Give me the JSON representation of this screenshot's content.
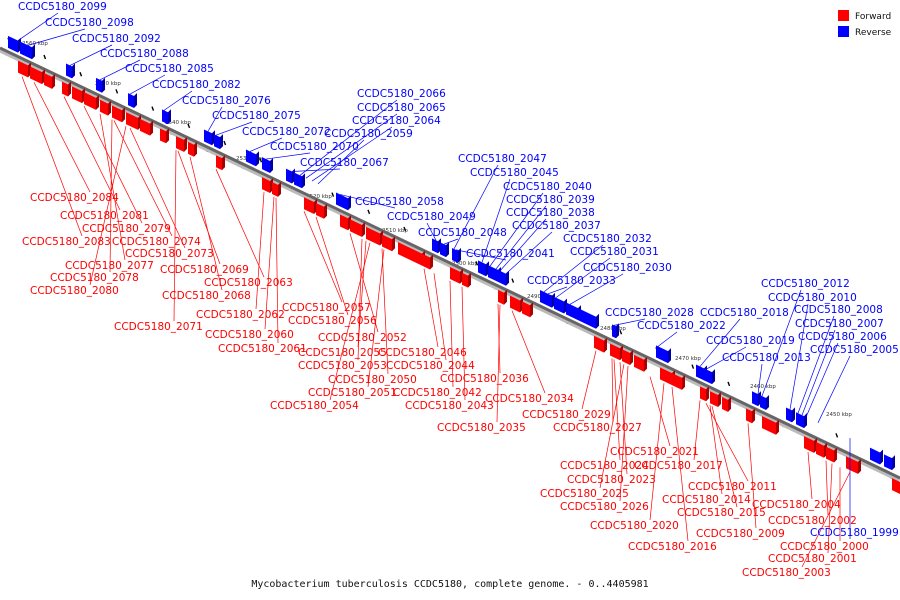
{
  "legend": [
    {
      "label": "Forward",
      "color": "#ff0000"
    },
    {
      "label": "Reverse",
      "color": "#0000ff"
    }
  ],
  "caption": "Mycobacterium tuberculosis CCDC5180, complete genome. - 0..4405981",
  "ticks": [
    "2560 kbp",
    "2550 kbp",
    "2540 kbp",
    "2530 kbp",
    "2520 kbp",
    "2510 kbp",
    "2500 kbp",
    "2490 kbp",
    "2480 kbp",
    "2470 kbp",
    "2460 kbp",
    "2450 kbp"
  ],
  "reverse_labels": [
    "CCDC5180_2099",
    "CCDC5180_2098",
    "CCDC5180_2092",
    "CCDC5180_2088",
    "CCDC5180_2085",
    "CCDC5180_2082",
    "CCDC5180_2076",
    "CCDC5180_2075",
    "CCDC5180_2072",
    "CCDC5180_2070",
    "CCDC5180_2067",
    "CCDC5180_2066",
    "CCDC5180_2065",
    "CCDC5180_2064",
    "CCDC5180_2059",
    "CCDC5180_2058",
    "CCDC5180_2049",
    "CCDC5180_2048",
    "CCDC5180_2047",
    "CCDC5180_2045",
    "CCDC5180_2040",
    "CCDC5180_2039",
    "CCDC5180_2038",
    "CCDC5180_2037",
    "CCDC5180_2041",
    "CCDC5180_2032",
    "CCDC5180_2031",
    "CCDC5180_2030",
    "CCDC5180_2033",
    "CCDC5180_2028",
    "CCDC5180_2022",
    "CCDC5180_2018",
    "CCDC5180_2019",
    "CCDC5180_2013",
    "CCDC5180_2012",
    "CCDC5180_2010",
    "CCDC5180_2008",
    "CCDC5180_2007",
    "CCDC5180_2006",
    "CCDC5180_2005",
    "CCDC5180_1999"
  ],
  "forward_labels": [
    "CCDC5180_2084",
    "CCDC5180_2081",
    "CCDC5180_2079",
    "CCDC5180_2083",
    "CCDC5180_2074",
    "CCDC5180_2073",
    "CCDC5180_2077",
    "CCDC5180_2078",
    "CCDC5180_2080",
    "CCDC5180_2069",
    "CCDC5180_2063",
    "CCDC5180_2068",
    "CCDC5180_2057",
    "CCDC5180_2062",
    "CCDC5180_2056",
    "CCDC5180_2071",
    "CCDC5180_2060",
    "CCDC5180_2052",
    "CCDC5180_2061",
    "CCDC5180_2055",
    "CCDC5180_2046",
    "CCDC5180_2053",
    "CCDC5180_2044",
    "CCDC5180_2050",
    "CCDC5180_2036",
    "CCDC5180_2051",
    "CCDC5180_2042",
    "CCDC5180_2054",
    "CCDC5180_2043",
    "CCDC5180_2034",
    "CCDC5180_2029",
    "CCDC5180_2035",
    "CCDC5180_2027",
    "CCDC5180_2021",
    "CCDC5180_2024",
    "CCDC5180_2017",
    "CCDC5180_2023",
    "CCDC5180_2011",
    "CCDC5180_2025",
    "CCDC5180_2014",
    "CCDC5180_2026",
    "CCDC5180_2015",
    "CCDC5180_2004",
    "CCDC5180_2020",
    "CCDC5180_2009",
    "CCDC5180_2002",
    "CCDC5180_2016",
    "CCDC5180_2000",
    "CCDC5180_2001",
    "CCDC5180_2003"
  ]
}
